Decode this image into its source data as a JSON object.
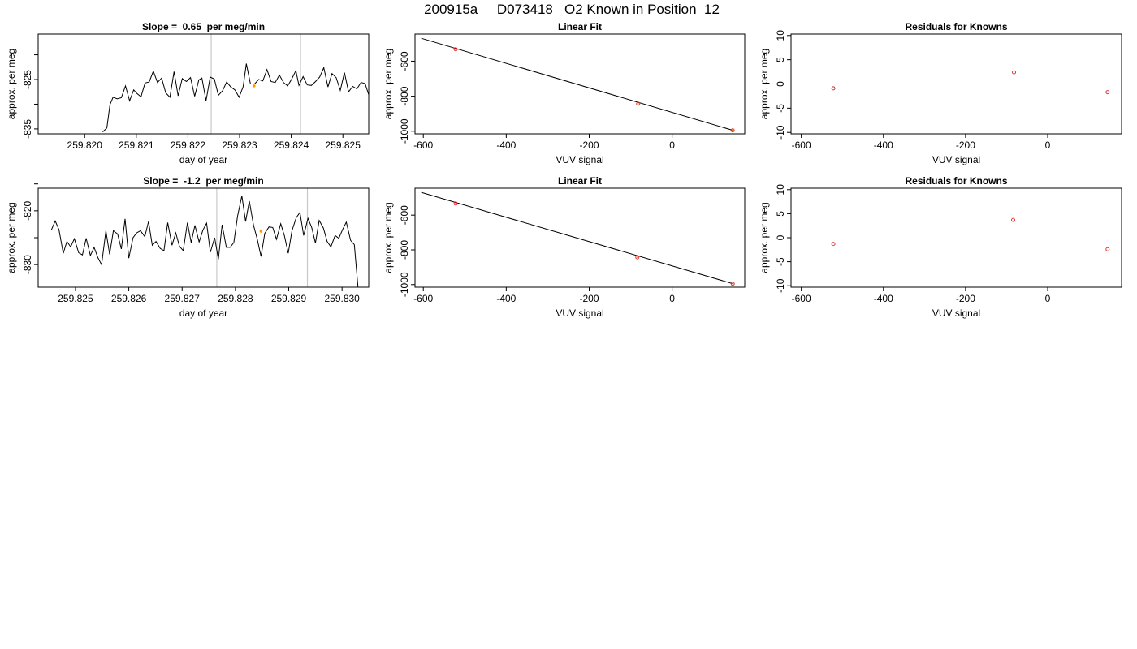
{
  "page_title": "200915a     D073418   O2 Known in Position  12",
  "colors": {
    "trace": "#000000",
    "fit_line": "#000000",
    "vertical_markers": "#c8c8c8",
    "known_points": "#dd2222",
    "marker_point": "#ff9900",
    "axes": "#000000"
  },
  "chart_data": [
    {
      "id": "row1-trace",
      "type": "line",
      "title": "Slope =  0.65  per meg/min",
      "xlabel": "day of year",
      "ylabel": "approx. per meg",
      "xlim": [
        259.8191,
        259.8255
      ],
      "ylim": [
        -836.0,
        -815.8
      ],
      "x_ticks": [
        259.82,
        259.821,
        259.822,
        259.823,
        259.824,
        259.825
      ],
      "x_tick_labels": [
        "259.820",
        "259.821",
        "259.822",
        "259.823",
        "259.824",
        "259.825"
      ],
      "y_ticks": [
        -835,
        -830,
        -825,
        -820
      ],
      "y_tick_labels": [
        "-835",
        "",
        "-825",
        ""
      ],
      "vlines": [
        259.82245,
        259.82418
      ],
      "marker": {
        "x": 259.82328,
        "y": -826.3
      },
      "grid": false,
      "series": [
        {
          "values_format": "[day of year, approx. per meg]",
          "points": [
            [
              259.82035,
              -835.6
            ],
            [
              259.82043,
              -834.8
            ],
            [
              259.82049,
              -830.1
            ],
            [
              259.82055,
              -828.6
            ],
            [
              259.82063,
              -828.9
            ],
            [
              259.82071,
              -828.7
            ],
            [
              259.82079,
              -826.3
            ],
            [
              259.82087,
              -829.3
            ],
            [
              259.82095,
              -827.1
            ],
            [
              259.82101,
              -827.8
            ],
            [
              259.82109,
              -828.5
            ],
            [
              259.82117,
              -825.7
            ],
            [
              259.82125,
              -825.5
            ],
            [
              259.82133,
              -823.3
            ],
            [
              259.82141,
              -825.6
            ],
            [
              259.82149,
              -824.7
            ],
            [
              259.82157,
              -827.7
            ],
            [
              259.82165,
              -828.6
            ],
            [
              259.82173,
              -823.4
            ],
            [
              259.82181,
              -828.3
            ],
            [
              259.82189,
              -824.8
            ],
            [
              259.82197,
              -825.4
            ],
            [
              259.82205,
              -824.6
            ],
            [
              259.82213,
              -828.4
            ],
            [
              259.82221,
              -825.1
            ],
            [
              259.82227,
              -824.7
            ],
            [
              259.82235,
              -829.3
            ],
            [
              259.82243,
              -824.5
            ],
            [
              259.82251,
              -824.9
            ],
            [
              259.82259,
              -828.2
            ],
            [
              259.82267,
              -827.3
            ],
            [
              259.82275,
              -825.5
            ],
            [
              259.82283,
              -826.5
            ],
            [
              259.82291,
              -827.1
            ],
            [
              259.82299,
              -828.6
            ],
            [
              259.82307,
              -826.4
            ],
            [
              259.82313,
              -821.8
            ],
            [
              259.82321,
              -825.9
            ],
            [
              259.82329,
              -825.9
            ],
            [
              259.82337,
              -825.0
            ],
            [
              259.82345,
              -825.3
            ],
            [
              259.82353,
              -823.0
            ],
            [
              259.82361,
              -825.4
            ],
            [
              259.82369,
              -825.6
            ],
            [
              259.82377,
              -824.1
            ],
            [
              259.82385,
              -825.6
            ],
            [
              259.82393,
              -826.3
            ],
            [
              259.82401,
              -824.9
            ],
            [
              259.82409,
              -823.2
            ],
            [
              259.82415,
              -826.2
            ],
            [
              259.82423,
              -824.4
            ],
            [
              259.82431,
              -826.1
            ],
            [
              259.82439,
              -826.2
            ],
            [
              259.82447,
              -825.4
            ],
            [
              259.82455,
              -824.5
            ],
            [
              259.82463,
              -822.6
            ],
            [
              259.82471,
              -826.5
            ],
            [
              259.82479,
              -823.8
            ],
            [
              259.82487,
              -824.6
            ],
            [
              259.82495,
              -827.2
            ],
            [
              259.82503,
              -823.6
            ],
            [
              259.82511,
              -827.5
            ],
            [
              259.82519,
              -826.4
            ],
            [
              259.82527,
              -826.9
            ],
            [
              259.82535,
              -825.6
            ],
            [
              259.82543,
              -825.8
            ],
            [
              259.82551,
              -828.4
            ]
          ]
        }
      ]
    },
    {
      "id": "row1-fit",
      "type": "scatter",
      "title": "Linear Fit",
      "xlabel": "VUV signal",
      "ylabel": "approx. per meg",
      "xlim": [
        -620,
        175
      ],
      "ylim": [
        -1015,
        -445
      ],
      "x_ticks": [
        -600,
        -400,
        -200,
        0
      ],
      "y_ticks": [
        -1000,
        -800,
        -600
      ],
      "fit_line": {
        "x": [
          -605,
          148
        ],
        "y": [
          -469,
          -996
        ]
      },
      "series": [
        {
          "values_format": "[VUV signal, approx. per meg]",
          "points": [
            [
              -522,
              -532
            ],
            [
              -82,
              -843
            ],
            [
              146,
              -995
            ]
          ]
        }
      ]
    },
    {
      "id": "row1-residuals",
      "type": "scatter",
      "title": "Residuals for Knowns",
      "xlabel": "VUV signal",
      "ylabel": "approx. per meg",
      "xlim": [
        -625,
        180
      ],
      "ylim": [
        -10.3,
        10.3
      ],
      "x_ticks": [
        -600,
        -400,
        -200,
        0
      ],
      "y_ticks": [
        -10,
        -5,
        0,
        5,
        10
      ],
      "series": [
        {
          "values_format": "[VUV signal, residual]",
          "points": [
            [
              -522,
              -0.9
            ],
            [
              -82,
              2.4
            ],
            [
              146,
              -1.7
            ]
          ]
        }
      ]
    },
    {
      "id": "row2-trace",
      "type": "line",
      "title": "Slope =  -1.2  per meg/min",
      "xlabel": "day of year",
      "ylabel": "approx. per meg",
      "xlim": [
        259.8243,
        259.8305
      ],
      "ylim": [
        -834.2,
        -815.8
      ],
      "x_ticks": [
        259.825,
        259.826,
        259.827,
        259.828,
        259.829,
        259.83
      ],
      "x_tick_labels": [
        "259.825",
        "259.826",
        "259.827",
        "259.828",
        "259.829",
        "259.830"
      ],
      "y_ticks": [
        -830,
        -825,
        -820,
        -815
      ],
      "y_tick_labels": [
        "-830",
        "",
        "-820",
        ""
      ],
      "vlines": [
        259.82765,
        259.82935
      ],
      "marker": {
        "x": 259.82848,
        "y": -823.8
      },
      "grid": false,
      "series": [
        {
          "values_format": "[day of year, approx. per meg]",
          "points": [
            [
              259.82455,
              -823.5
            ],
            [
              259.82462,
              -821.9
            ],
            [
              259.82469,
              -823.5
            ],
            [
              259.82477,
              -827.9
            ],
            [
              259.82484,
              -825.7
            ],
            [
              259.82491,
              -826.7
            ],
            [
              259.82498,
              -825.2
            ],
            [
              259.82506,
              -827.8
            ],
            [
              259.82513,
              -828.2
            ],
            [
              259.8252,
              -825.1
            ],
            [
              259.82528,
              -828.3
            ],
            [
              259.82535,
              -826.8
            ],
            [
              259.82542,
              -828.7
            ],
            [
              259.82549,
              -830.0
            ],
            [
              259.82557,
              -823.7
            ],
            [
              259.82564,
              -828.1
            ],
            [
              259.82571,
              -823.7
            ],
            [
              259.82579,
              -824.3
            ],
            [
              259.82586,
              -827.1
            ],
            [
              259.82593,
              -821.5
            ],
            [
              259.826,
              -828.8
            ],
            [
              259.82608,
              -825.0
            ],
            [
              259.82615,
              -824.1
            ],
            [
              259.82622,
              -823.7
            ],
            [
              259.8263,
              -824.8
            ],
            [
              259.82637,
              -822.0
            ],
            [
              259.82644,
              -826.4
            ],
            [
              259.82651,
              -825.7
            ],
            [
              259.82659,
              -827.0
            ],
            [
              259.82666,
              -827.4
            ],
            [
              259.82673,
              -822.2
            ],
            [
              259.82681,
              -826.4
            ],
            [
              259.82688,
              -824.1
            ],
            [
              259.82695,
              -826.6
            ],
            [
              259.82702,
              -827.4
            ],
            [
              259.8271,
              -822.2
            ],
            [
              259.82717,
              -825.9
            ],
            [
              259.82724,
              -822.7
            ],
            [
              259.82732,
              -825.8
            ],
            [
              259.82739,
              -823.6
            ],
            [
              259.82746,
              -822.3
            ],
            [
              259.82753,
              -827.7
            ],
            [
              259.82761,
              -825.0
            ],
            [
              259.82768,
              -829.0
            ],
            [
              259.82775,
              -822.6
            ],
            [
              259.82783,
              -826.8
            ],
            [
              259.8279,
              -826.8
            ],
            [
              259.82797,
              -825.9
            ],
            [
              259.82804,
              -821.0
            ],
            [
              259.82812,
              -817.2
            ],
            [
              259.82819,
              -822.0
            ],
            [
              259.82826,
              -818.2
            ],
            [
              259.82834,
              -822.7
            ],
            [
              259.82841,
              -825.3
            ],
            [
              259.82848,
              -828.5
            ],
            [
              259.82855,
              -824.2
            ],
            [
              259.82863,
              -823.0
            ],
            [
              259.8287,
              -823.1
            ],
            [
              259.82877,
              -825.3
            ],
            [
              259.82885,
              -822.4
            ],
            [
              259.82892,
              -824.7
            ],
            [
              259.82899,
              -827.9
            ],
            [
              259.82906,
              -823.7
            ],
            [
              259.82914,
              -821.3
            ],
            [
              259.82921,
              -820.3
            ],
            [
              259.82928,
              -824.6
            ],
            [
              259.82936,
              -821.4
            ],
            [
              259.82943,
              -823.1
            ],
            [
              259.8295,
              -826.0
            ],
            [
              259.82957,
              -821.8
            ],
            [
              259.82965,
              -823.2
            ],
            [
              259.82972,
              -825.7
            ],
            [
              259.82979,
              -826.7
            ],
            [
              259.82987,
              -824.6
            ],
            [
              259.82994,
              -825.1
            ],
            [
              259.83001,
              -823.5
            ],
            [
              259.83008,
              -822.1
            ],
            [
              259.83016,
              -825.5
            ],
            [
              259.83023,
              -826.3
            ],
            [
              259.8303,
              -834.4
            ]
          ]
        }
      ]
    },
    {
      "id": "row2-fit",
      "type": "scatter",
      "title": "Linear Fit",
      "xlabel": "VUV signal",
      "ylabel": "approx. per meg",
      "xlim": [
        -620,
        175
      ],
      "ylim": [
        -1015,
        -445
      ],
      "x_ticks": [
        -600,
        -400,
        -200,
        0
      ],
      "y_ticks": [
        -1000,
        -800,
        -600
      ],
      "fit_line": {
        "x": [
          -605,
          148
        ],
        "y": [
          -469,
          -996
        ]
      },
      "series": [
        {
          "values_format": "[VUV signal, approx. per meg]",
          "points": [
            [
              -522,
              -533
            ],
            [
              -84,
              -843
            ],
            [
              146,
              -995
            ]
          ]
        }
      ]
    },
    {
      "id": "row2-residuals",
      "type": "scatter",
      "title": "Residuals for Knowns",
      "xlabel": "VUV signal",
      "ylabel": "approx. per meg",
      "xlim": [
        -625,
        180
      ],
      "ylim": [
        -10.3,
        10.3
      ],
      "x_ticks": [
        -600,
        -400,
        -200,
        0
      ],
      "y_ticks": [
        -10,
        -5,
        0,
        5,
        10
      ],
      "series": [
        {
          "values_format": "[VUV signal, residual]",
          "points": [
            [
              -522,
              -1.3
            ],
            [
              -84,
              3.7
            ],
            [
              146,
              -2.4
            ]
          ]
        }
      ]
    }
  ]
}
